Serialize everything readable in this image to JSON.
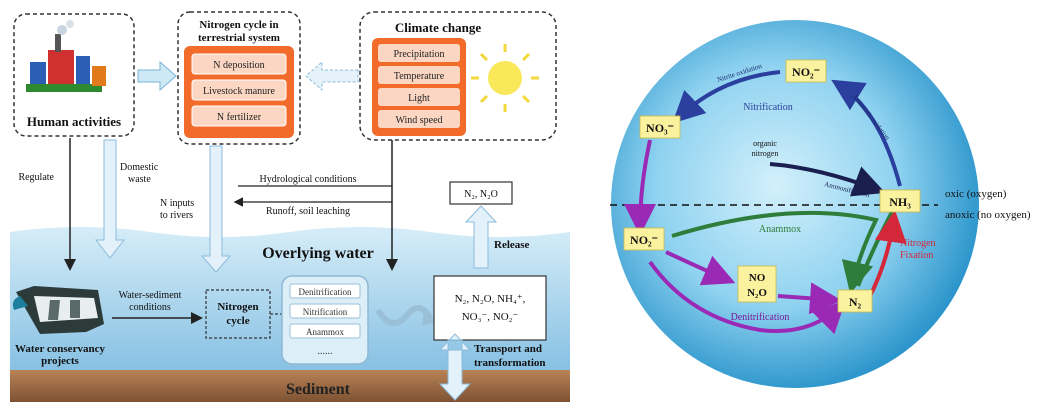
{
  "left_panel": {
    "human_activities": "Human activities",
    "nitrogen_cycle_title_line1": "Nitrogen cycle in",
    "nitrogen_cycle_title_line2": "terrestrial system",
    "nitrogen_items": [
      "N deposition",
      "Livestock manure",
      "N fertilizer"
    ],
    "climate_title": "Climate change",
    "climate_items": [
      "Precipitation",
      "Temperature",
      "Light",
      "Wind speed"
    ],
    "regulate": "Regulate",
    "domestic_line1": "Domestic",
    "domestic_line2": "waste",
    "n_inputs_line1": "N inputs",
    "n_inputs_line2": "to rivers",
    "hydrological": "Hydrological conditions",
    "runoff": "Runoff, soil leaching",
    "gas_box": "N₂, N₂O",
    "release": "Release",
    "overlying_water": "Overlying water",
    "water_sediment_line1": "Water-sediment",
    "water_sediment_line2": "conditions",
    "nitrogen_cycle_center_line1": "Nitrogen",
    "nitrogen_cycle_center_line2": "cycle",
    "process_items": [
      "Denitrification",
      "Nitrification",
      "Anammox"
    ],
    "process_ellipsis": "......",
    "species_line1": "N₂, N₂O, NH₄⁺,",
    "species_line2": "NO₃⁻, NO₂⁻",
    "conservancy_line1": "Water conservancy",
    "conservancy_line2": "projects",
    "transport_line1": "Transport and",
    "transport_line2": "transformation",
    "sediment": "Sediment"
  },
  "right_panel": {
    "no2_top": "NO₂⁻",
    "no3": "NO₃⁻",
    "nh3": "NH₃",
    "no2_left": "NO₂⁻",
    "no": "NO",
    "n2o": "N₂O",
    "n2": "N₂",
    "nitrification": "Nitrification",
    "nitrite_oxidation": "Nitrite oxidation",
    "ammonia_oxidation": "Ammonia oxidation",
    "organic_line1": "organic",
    "organic_line2": "nitrogen",
    "ammonification": "Ammonification",
    "anammox": "Anammox",
    "nitrogen_fixation_line1": "Nitrogen",
    "nitrogen_fixation_line2": "Fixation",
    "denitrification": "Denitrification",
    "oxic": "oxic (oxygen)",
    "anoxic": "anoxic (no oxygen)"
  },
  "colors": {
    "water_top": "#cde8f6",
    "water_bottom": "#8fc6e6",
    "sediment": "#9b6b45",
    "orange_box": "#f26b2a",
    "sphere_light": "#bfe6f7",
    "sphere_dark": "#1f95cf",
    "label_bg": "#fbf2a0",
    "nitrification_arrow": "#2b3f9e",
    "denitrification_arrow": "#9a2ab6",
    "anammox_arrow": "#2e7d3a",
    "fixation_arrow": "#d4283a"
  }
}
